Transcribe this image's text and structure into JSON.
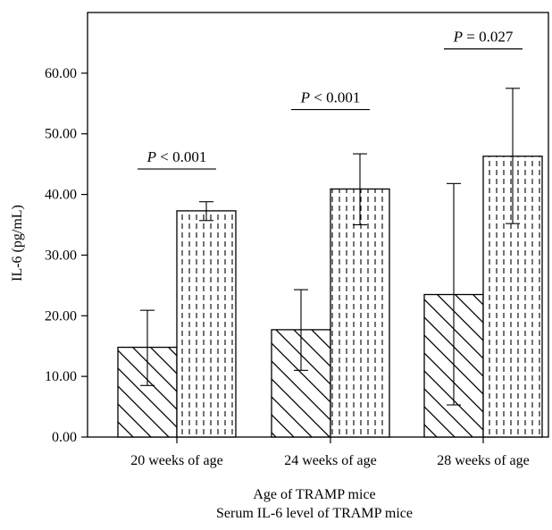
{
  "chart_data": {
    "type": "bar",
    "categories": [
      "20 weeks of age",
      "24 weeks of age",
      "28 weeks of age"
    ],
    "series": [
      {
        "pattern": "diagonal-hatch",
        "values": [
          14.8,
          17.7,
          23.5
        ],
        "error_low": [
          8.5,
          11.0,
          5.3
        ],
        "error_high": [
          20.9,
          24.3,
          41.8
        ]
      },
      {
        "pattern": "vertical-dashed",
        "values": [
          37.3,
          40.9,
          46.3
        ],
        "error_low": [
          35.7,
          35.0,
          35.2
        ],
        "error_high": [
          38.8,
          46.7,
          57.5
        ]
      }
    ],
    "ylabel": "IL-6 (pg/mL)",
    "xlabel": "Age of TRAMP mice",
    "subtitle": "Serum IL-6 level of TRAMP mice",
    "ylim": [
      0,
      70
    ],
    "yticks": [
      "0.00",
      "10.00",
      "20.00",
      "30.00",
      "40.00",
      "50.00",
      "60.00"
    ],
    "ytick_values": [
      0,
      10,
      20,
      30,
      40,
      50,
      60
    ],
    "grid": false,
    "annotations": [
      {
        "group": 0,
        "p_label": "P",
        "text": " < 0.001",
        "y": 44.2
      },
      {
        "group": 1,
        "p_label": "P",
        "text": " < 0.001",
        "y": 54.0
      },
      {
        "group": 2,
        "p_label": "P",
        "text": " = 0.027",
        "y": 64.0
      }
    ]
  }
}
